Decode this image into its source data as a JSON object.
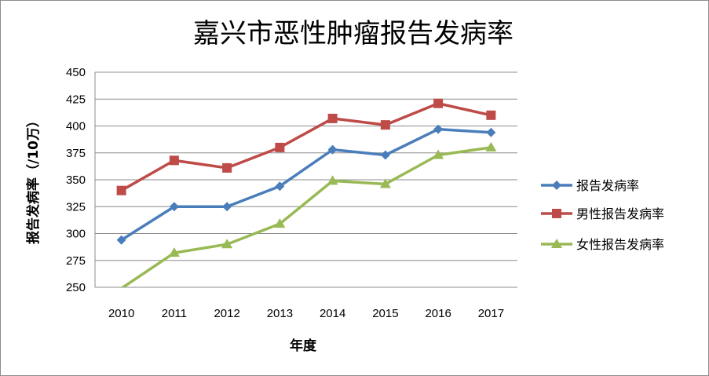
{
  "chart_data": {
    "type": "line",
    "title": "嘉兴市恶性肿瘤报告发病率",
    "xlabel": "年度",
    "ylabel": "报告发病率（/10万）",
    "categories": [
      "2010",
      "2011",
      "2012",
      "2013",
      "2014",
      "2015",
      "2016",
      "2017"
    ],
    "ylim": [
      250,
      450
    ],
    "yticks": [
      250,
      275,
      300,
      325,
      350,
      375,
      400,
      425,
      450
    ],
    "grid": true,
    "legend_position": "right",
    "series": [
      {
        "name": "报告发病率",
        "color": "#4a7ebb",
        "marker": "diamond",
        "values": [
          294,
          325,
          325,
          344,
          378,
          373,
          397,
          394
        ]
      },
      {
        "name": "男性报告发病率",
        "color": "#be4b48",
        "marker": "square",
        "values": [
          340,
          368,
          361,
          380,
          407,
          401,
          421,
          410
        ]
      },
      {
        "name": "女性报告发病率",
        "color": "#98b954",
        "marker": "triangle",
        "values": [
          249,
          282,
          290,
          309,
          349,
          346,
          373,
          380
        ]
      }
    ]
  }
}
